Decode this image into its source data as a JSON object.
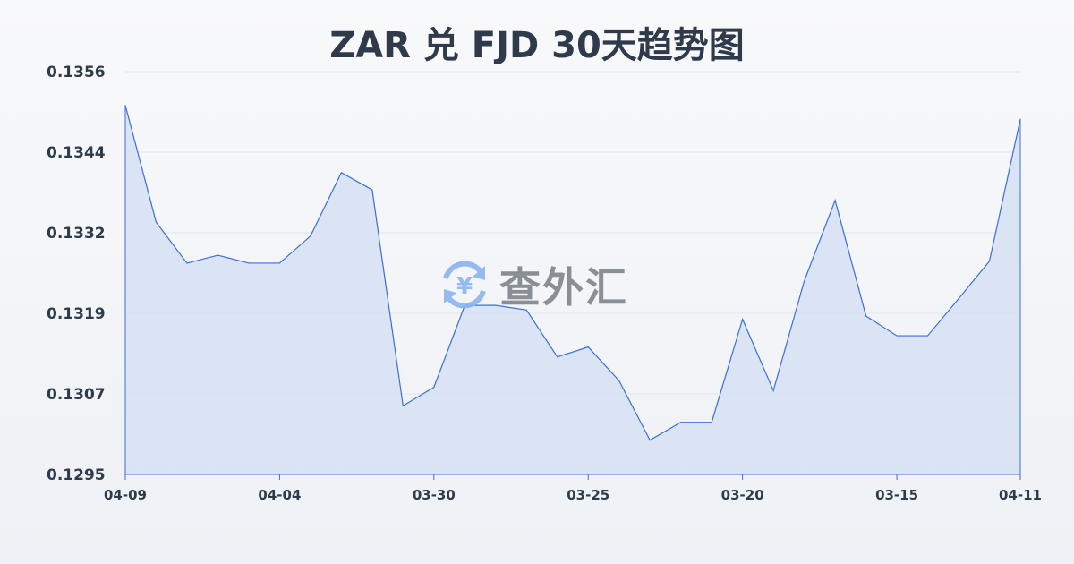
{
  "chart_data": {
    "type": "area",
    "title": "ZAR 兑 FJD 30天趋势图",
    "xlabel": "",
    "ylabel": "",
    "ylim": [
      0.1295,
      0.1356
    ],
    "yticks": [
      "0.1356",
      "0.1344",
      "0.1332",
      "0.1319",
      "0.1307",
      "0.1295"
    ],
    "xtick_labels": [
      "04-09",
      "04-04",
      "03-30",
      "03-25",
      "03-20",
      "03-15",
      "04-11"
    ],
    "xtick_indices": [
      0,
      5,
      10,
      15,
      20,
      25,
      29
    ],
    "values": [
      0.13509,
      0.13332,
      0.1327,
      0.13282,
      0.1327,
      0.1327,
      0.13311,
      0.13407,
      0.13381,
      0.13054,
      0.13082,
      0.13206,
      0.13206,
      0.13199,
      0.13128,
      0.13143,
      0.13092,
      0.13002,
      0.13029,
      0.13029,
      0.13185,
      0.13077,
      0.13243,
      0.13365,
      0.1319,
      0.1316,
      0.1316,
      0.13216,
      0.13273,
      0.13488
    ],
    "grid": true,
    "line_color": "#3b6fd6",
    "fill_color": "#d6e0f5"
  },
  "watermark": {
    "text": "查外汇",
    "icon": "yen-exchange-icon",
    "icon_color": "#8ab4f0"
  }
}
